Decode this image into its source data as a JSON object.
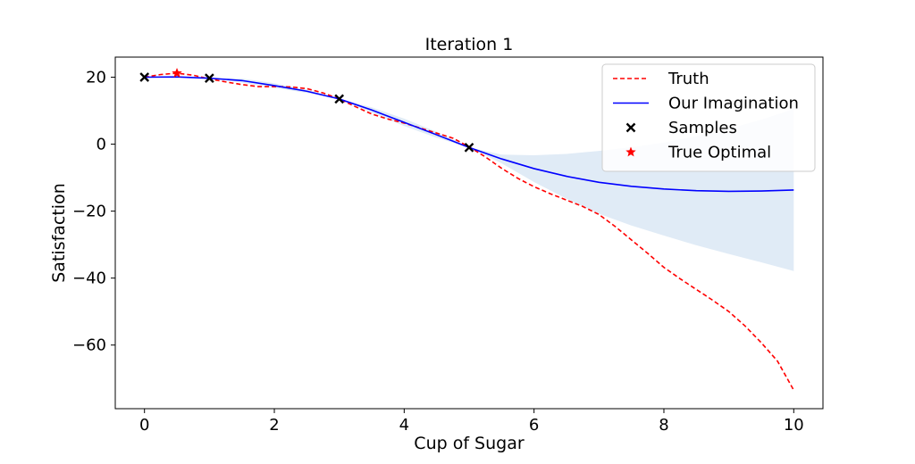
{
  "chart_data": {
    "type": "line",
    "title": "Iteration 1",
    "xlabel": "Cup of Sugar",
    "ylabel": "Satisfaction",
    "xlim": [
      -0.45,
      10.45
    ],
    "ylim": [
      -79,
      26
    ],
    "xticks": [
      0,
      2,
      4,
      6,
      8,
      10
    ],
    "yticks": [
      20,
      0,
      -20,
      -40,
      -60
    ],
    "xtick_labels": [
      "0",
      "2",
      "4",
      "6",
      "8",
      "10"
    ],
    "ytick_labels": [
      "20",
      "0",
      "−20",
      "−40",
      "−60"
    ],
    "grid": false,
    "legend_position": "top-right",
    "series": [
      {
        "name": "Truth",
        "style": "dashed-line",
        "color": "#ff0000",
        "x": [
          0,
          0.25,
          0.5,
          0.75,
          1,
          1.25,
          1.5,
          1.75,
          2,
          2.25,
          2.5,
          2.75,
          3,
          3.25,
          3.5,
          3.75,
          4,
          4.25,
          4.5,
          4.75,
          5,
          5.25,
          5.5,
          5.75,
          6,
          6.25,
          6.5,
          6.75,
          7,
          7.25,
          7.5,
          7.75,
          8,
          8.25,
          8.5,
          8.75,
          9,
          9.25,
          9.5,
          9.75,
          10
        ],
        "y": [
          20,
          20.8,
          21.2,
          20.6,
          19.5,
          18.6,
          17.8,
          17.2,
          17.2,
          17.1,
          16.6,
          15.3,
          13.5,
          11.2,
          9.0,
          7.5,
          6.3,
          4.8,
          3.3,
          1.8,
          -0.8,
          -3.8,
          -7.2,
          -10.2,
          -12.7,
          -14.8,
          -16.7,
          -18.6,
          -21.0,
          -24.6,
          -28.6,
          -32.6,
          -36.8,
          -40.2,
          -43.4,
          -46.6,
          -50.0,
          -54.3,
          -59.3,
          -64.8,
          -73.5
        ]
      },
      {
        "name": "Our Imagination",
        "style": "solid-line",
        "color": "#0000ff",
        "x": [
          0,
          0.5,
          1,
          1.5,
          2,
          2.5,
          3,
          3.5,
          4,
          4.5,
          5,
          5.5,
          6,
          6.5,
          7,
          7.5,
          8,
          8.5,
          9,
          9.5,
          10
        ],
        "y": [
          20.0,
          20.1,
          19.7,
          19.0,
          17.5,
          15.8,
          13.5,
          10.2,
          6.5,
          2.8,
          -1.0,
          -4.4,
          -7.3,
          -9.6,
          -11.4,
          -12.6,
          -13.4,
          -13.9,
          -14.1,
          -14.0,
          -13.7
        ]
      },
      {
        "name": "Uncertainty band",
        "style": "band",
        "color": "#c6dbef",
        "x": [
          0,
          0.5,
          1,
          1.5,
          2,
          2.5,
          3,
          3.5,
          4,
          4.5,
          5,
          5.5,
          6,
          6.5,
          7,
          7.5,
          8,
          8.5,
          9,
          9.5,
          10
        ],
        "upper": [
          20.0,
          20.3,
          19.7,
          19.6,
          18.2,
          16.3,
          13.5,
          11.0,
          7.6,
          3.7,
          -1.0,
          -3.1,
          -3.3,
          -2.9,
          -2.0,
          -0.9,
          0.5,
          2.4,
          4.6,
          7.3,
          10.5
        ],
        "lower": [
          20.0,
          19.9,
          19.7,
          18.4,
          16.8,
          15.3,
          13.5,
          9.4,
          5.4,
          1.9,
          -1.0,
          -5.7,
          -11.3,
          -16.3,
          -20.8,
          -24.3,
          -27.3,
          -30.2,
          -32.8,
          -35.3,
          -37.9
        ]
      },
      {
        "name": "Samples",
        "style": "x-markers",
        "color": "#000000",
        "x": [
          0,
          1,
          3,
          5
        ],
        "y": [
          20.0,
          19.7,
          13.5,
          -1.0
        ]
      },
      {
        "name": "True Optimal",
        "style": "star-marker",
        "color": "#ff0000",
        "x": [
          0.5
        ],
        "y": [
          21.2
        ]
      }
    ]
  }
}
